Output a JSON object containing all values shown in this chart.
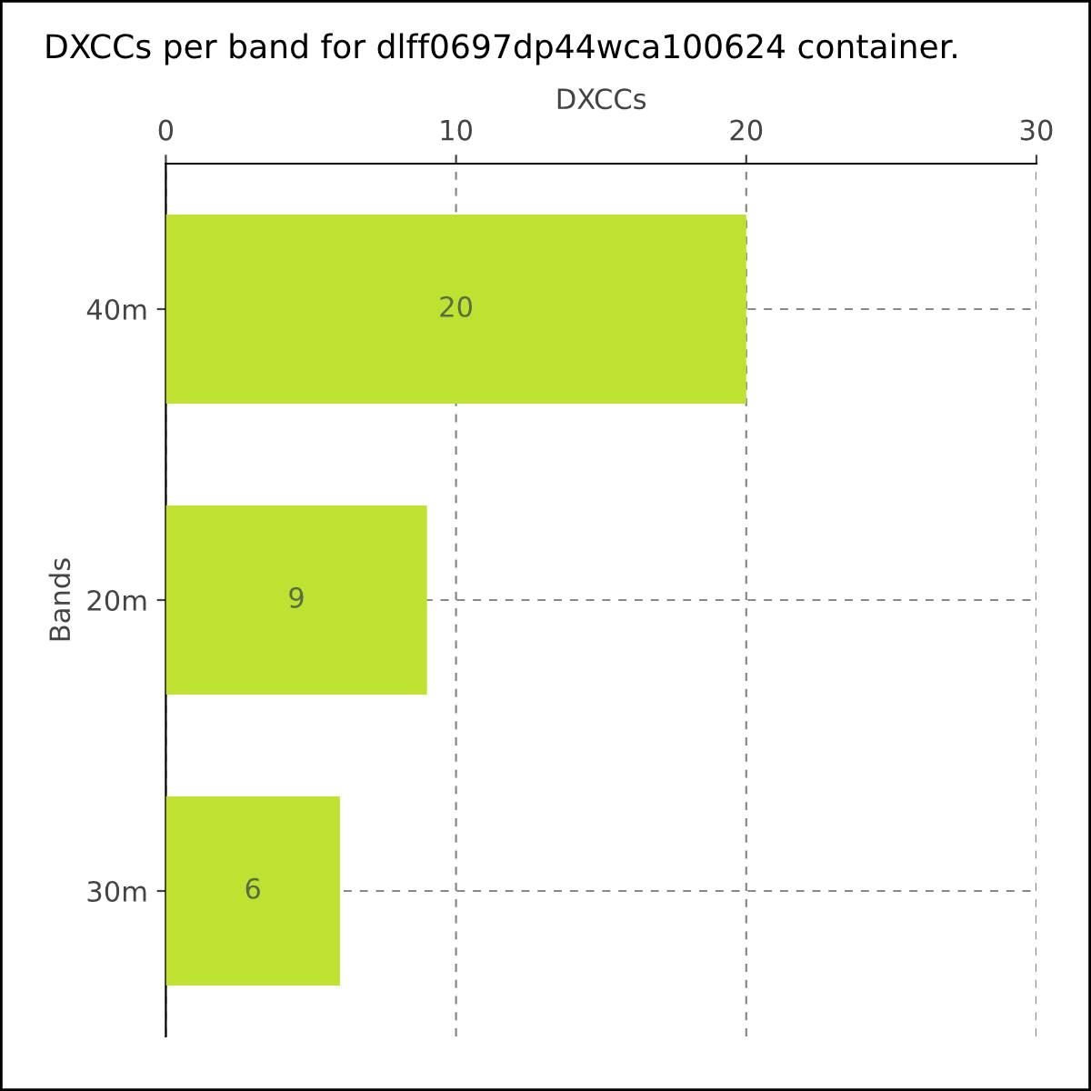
{
  "chart_data": {
    "type": "bar",
    "orientation": "horizontal",
    "title": "DXCCs per band for dlff0697dp44wca100624 container.",
    "xlabel": "DXCCs",
    "ylabel": "Bands",
    "categories": [
      "40m",
      "20m",
      "30m"
    ],
    "values": [
      20,
      9,
      6
    ],
    "color": "#bee22f",
    "xlim": [
      0,
      30
    ],
    "xticks": [
      0,
      10,
      20,
      30
    ],
    "grid": true,
    "data_labels": true
  }
}
